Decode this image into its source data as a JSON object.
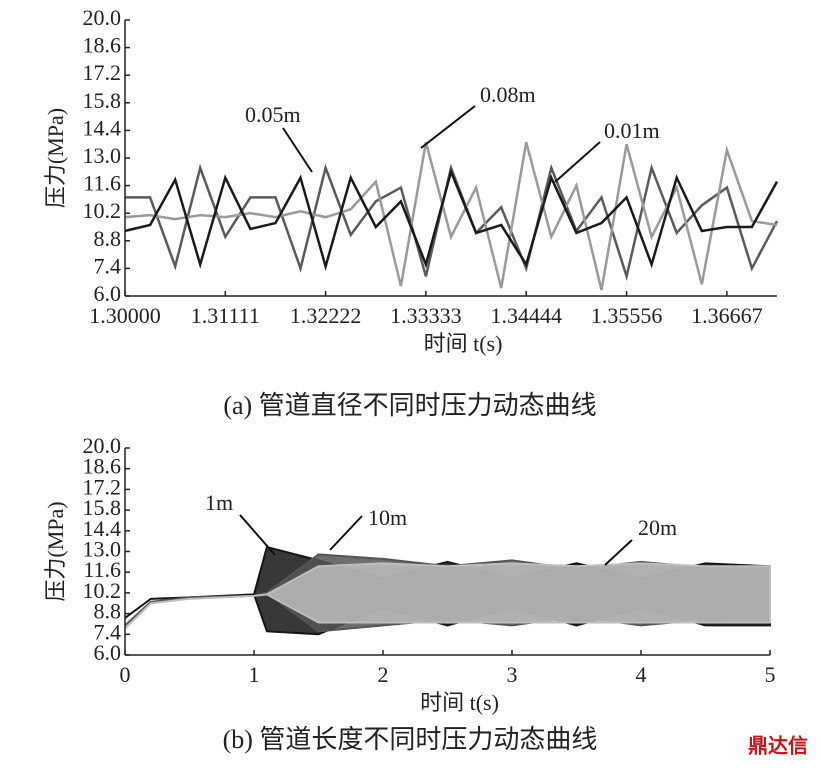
{
  "chart_data": [
    {
      "type": "line",
      "caption": "(a) 管道直径不同时压力动态曲线",
      "x_label": "时间 t(s)",
      "y_label": "压力(MPa)",
      "x": [
        1.3,
        1.30278,
        1.30556,
        1.30833,
        1.31111,
        1.31389,
        1.31667,
        1.31944,
        1.32222,
        1.325,
        1.32778,
        1.33056,
        1.33333,
        1.33611,
        1.33889,
        1.34167,
        1.34444,
        1.34722,
        1.35,
        1.35278,
        1.35556,
        1.35833,
        1.36111,
        1.36389,
        1.36667,
        1.36944,
        1.37222
      ],
      "series": [
        {
          "name": "0.05m",
          "color": "#5a5a5a",
          "values": [
            11.0,
            11.0,
            7.5,
            12.5,
            9.0,
            11.0,
            11.0,
            7.4,
            12.5,
            9.1,
            10.8,
            11.5,
            7.0,
            12.5,
            9.2,
            10.5,
            7.4,
            12.5,
            9.3,
            11.0,
            7.0,
            12.5,
            9.2,
            10.6,
            11.5,
            7.4,
            9.8
          ]
        },
        {
          "name": "0.08m",
          "color": "#9a9a9a",
          "values": [
            10.0,
            10.1,
            9.9,
            10.1,
            10.0,
            10.2,
            10.0,
            10.3,
            10.0,
            10.4,
            11.8,
            6.5,
            13.8,
            9.0,
            11.5,
            6.4,
            13.8,
            9.0,
            11.6,
            6.3,
            13.7,
            9.0,
            11.5,
            6.6,
            13.4,
            9.8,
            9.6
          ]
        },
        {
          "name": "0.01m",
          "color": "#1a1a1a",
          "values": [
            9.3,
            9.6,
            11.9,
            7.6,
            12.0,
            9.4,
            9.7,
            12.0,
            7.5,
            12.0,
            9.5,
            10.8,
            7.6,
            12.3,
            9.2,
            9.6,
            7.6,
            12.0,
            9.2,
            9.7,
            11.0,
            7.6,
            12.0,
            9.3,
            9.5,
            9.5,
            11.8
          ]
        }
      ],
      "xlim": [
        1.3,
        1.37222
      ],
      "xticks": [
        {
          "value": 1.3,
          "label": "1.30000"
        },
        1.31111,
        1.32222,
        1.33333,
        1.34444,
        1.35556,
        1.36667
      ],
      "ylim": [
        6,
        20
      ],
      "yticks": [
        {
          "value": 6,
          "label": "6.0"
        },
        7.4,
        8.8,
        10.2,
        11.6,
        {
          "value": 13,
          "label": "13.0"
        },
        14.4,
        15.8,
        17.2,
        18.6,
        {
          "value": 20,
          "label": "20.0"
        }
      ]
    },
    {
      "type": "area",
      "caption": "(b) 管道长度不同时压力动态曲线",
      "x_label": "时间 t(s)",
      "y_label": "压力(MPa)",
      "x": [
        0,
        0.2,
        0.5,
        1.0,
        1.1,
        1.5,
        2.0,
        2.5,
        3.0,
        3.5,
        4.0,
        4.5,
        5.0
      ],
      "series": [
        {
          "name": "1m",
          "color": "#151515",
          "values": [
            8.5,
            9.8,
            9.9,
            10.1,
            13.3,
            12.4,
            11.2,
            12.3,
            11.2,
            12.2,
            11.2,
            12.2,
            12.0
          ],
          "lower": [
            8.5,
            9.8,
            9.9,
            10.1,
            7.6,
            7.4,
            9.2,
            8.0,
            9.2,
            8.0,
            9.2,
            8.0,
            8.0
          ]
        },
        {
          "name": "10m",
          "color": "#555555",
          "values": [
            8.0,
            9.6,
            9.9,
            10.0,
            10.2,
            12.8,
            12.5,
            12.0,
            12.4,
            11.8,
            12.3,
            11.9,
            12.0
          ],
          "lower": [
            8.0,
            9.6,
            9.9,
            10.0,
            10.2,
            7.6,
            8.0,
            8.4,
            8.0,
            8.6,
            8.0,
            8.4,
            8.2
          ]
        },
        {
          "name": "20m",
          "color": "#bdbdbd",
          "values": [
            7.8,
            9.5,
            9.8,
            10.0,
            10.1,
            12.0,
            12.2,
            12.0,
            12.2,
            12.0,
            12.2,
            12.0,
            12.0
          ],
          "lower": [
            7.8,
            9.5,
            9.8,
            10.0,
            10.1,
            8.2,
            8.2,
            8.2,
            8.2,
            8.2,
            8.2,
            8.2,
            8.2
          ]
        }
      ],
      "xlim": [
        0,
        5
      ],
      "xticks": [
        0,
        1,
        2,
        3,
        4,
        5
      ],
      "ylim": [
        6,
        20
      ],
      "yticks": [
        {
          "value": 6,
          "label": "6.0"
        },
        7.4,
        8.8,
        10.2,
        11.6,
        {
          "value": 13,
          "label": "13.0"
        },
        14.4,
        15.8,
        17.2,
        18.6,
        {
          "value": 20,
          "label": "20.0"
        }
      ]
    }
  ],
  "watermark": "鼎达信"
}
